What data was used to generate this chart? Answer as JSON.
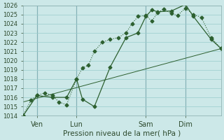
{
  "xlabel": "Pression niveau de la mer( hPa )",
  "background_color": "#cce8e8",
  "grid_color": "#99cccc",
  "vline_color": "#557788",
  "line_color": "#2d6030",
  "ylim": [
    1014,
    1026
  ],
  "ytick_step": 1,
  "xlim": [
    0,
    100
  ],
  "xtick_positions": [
    7,
    27,
    62,
    82
  ],
  "xtick_labels": [
    "Ven",
    "Lun",
    "Sam",
    "Dim"
  ],
  "vline_positions": [
    7,
    27,
    62,
    82
  ],
  "series1_x": [
    0,
    4,
    7,
    11,
    15,
    18,
    22,
    27,
    30,
    33,
    36,
    40,
    44,
    48,
    52,
    55,
    58,
    62,
    65,
    68,
    71,
    75,
    78,
    82,
    86,
    90,
    95,
    100
  ],
  "series1_y": [
    1014,
    1015.7,
    1016.2,
    1016.5,
    1016.2,
    1015.5,
    1015.2,
    1018.0,
    1019.2,
    1019.5,
    1021.0,
    1022.0,
    1022.3,
    1022.5,
    1023.0,
    1024.0,
    1024.8,
    1024.9,
    1024.3,
    1025.2,
    1025.6,
    1025.1,
    1024.9,
    1025.7,
    1025.0,
    1024.7,
    1022.5,
    1021.3
  ],
  "series2_x": [
    0,
    7,
    15,
    22,
    27,
    30,
    36,
    44,
    52,
    58,
    62,
    65,
    68,
    75,
    82,
    86,
    95,
    100
  ],
  "series2_y": [
    1014,
    1016.2,
    1016.0,
    1016.0,
    1018.0,
    1015.8,
    1015.0,
    1019.3,
    1022.5,
    1023.0,
    1024.8,
    1025.5,
    1025.3,
    1025.4,
    1026.1,
    1024.8,
    1022.3,
    1021.3
  ],
  "series3_x": [
    0,
    100
  ],
  "series3_y": [
    1015.5,
    1021.3
  ],
  "marker": "D",
  "markersize": 2.5,
  "linewidth1": 0.8,
  "linewidth2": 0.9,
  "linewidth3": 0.7
}
